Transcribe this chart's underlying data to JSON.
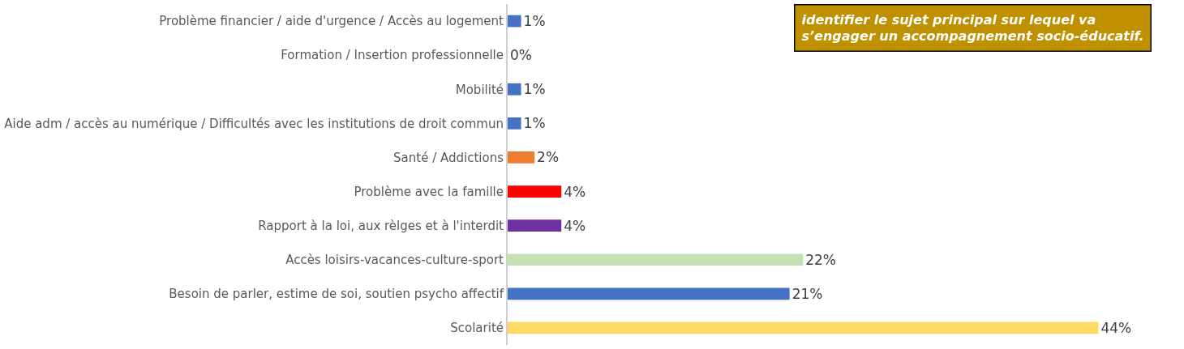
{
  "chart_data": {
    "type": "bar",
    "orientation": "horizontal",
    "tick_labels": "y",
    "value_labels": [
      "1%",
      "0%",
      "1%",
      "1%",
      "2%",
      "4%",
      "4%",
      "22%",
      "21%",
      "44%"
    ],
    "categories": [
      "Problème financier / aide d'urgence / Accès au logement",
      "Formation / Insertion professionnelle",
      "Mobilité",
      "Aide adm / accès au numérique / Difficultés avec les institutions de droit commun",
      "Santé / Addictions",
      "Problème avec la famille",
      "Rapport à la loi, aux rèlges et à l'interdit",
      "Accès loisirs-vacances-culture-sport",
      "Besoin de parler, estime de soi, soutien psycho affectif",
      "Scolarité"
    ],
    "values": [
      1,
      0,
      1,
      1,
      2,
      4,
      4,
      22,
      21,
      44
    ],
    "colors": [
      "#4472c4",
      "#4472c4",
      "#4472c4",
      "#4472c4",
      "#ed7d31",
      "#ff0000",
      "#7030a0",
      "#c5e0b4",
      "#4472c4",
      "#ffd966"
    ],
    "annotations": [
      "identifier le sujet principal sur lequel va s’engager un accompagnement socio-éducatif."
    ]
  }
}
